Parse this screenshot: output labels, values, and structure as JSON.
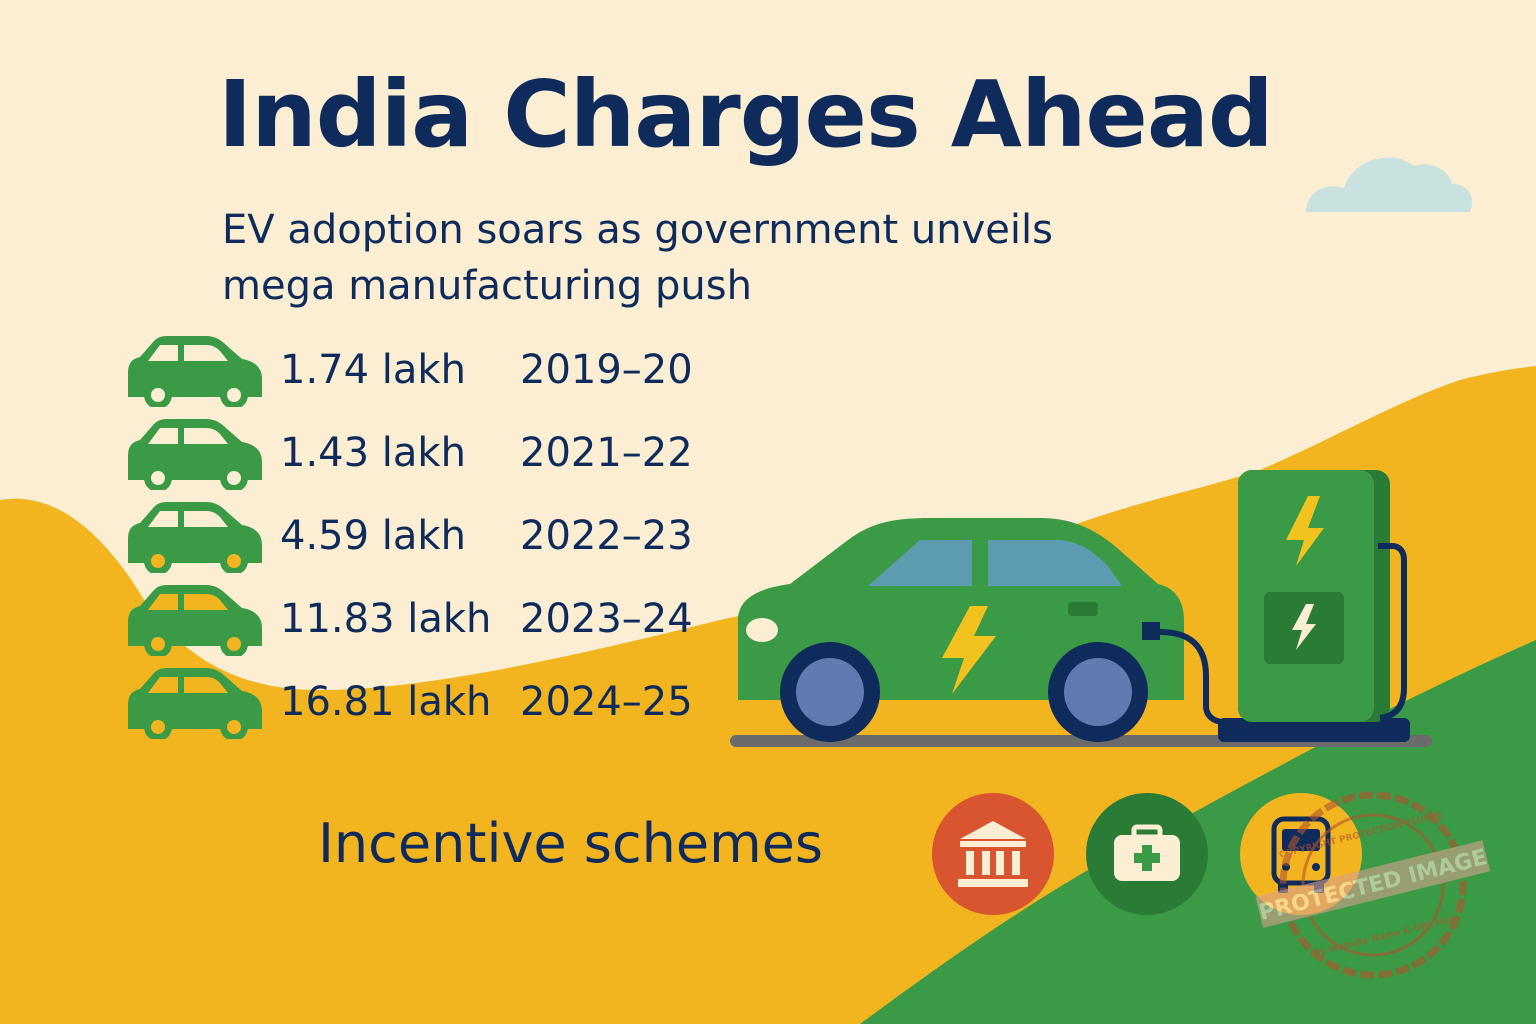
{
  "infographic": {
    "title": "India Charges Ahead",
    "subtitle": "EV adoption soars as government unveils mega manufacturing push",
    "stats": [
      {
        "value": "1.74 lakh",
        "year": "2019–20"
      },
      {
        "value": "1.43 lakh",
        "year": "2021–22"
      },
      {
        "value": "4.59 lakh",
        "year": "2022–23"
      },
      {
        "value": "11.83 lakh",
        "year": "2023–24"
      },
      {
        "value": "16.81 lakh",
        "year": "2024–25"
      }
    ],
    "incentives_heading": "Incentive schemes",
    "scheme_icons": [
      "bank-building-icon",
      "toolbox-plus-icon",
      "bus-icon"
    ],
    "watermark_text": [
      "PROTECTED IMAGE",
      "COPYRIGHT PROTECTION PLUGIN",
      "My Website Name & URL Here"
    ]
  },
  "colors": {
    "background": "#fbeed3",
    "navy": "#0f2b5c",
    "green": "#3a9a46",
    "mustard": "#f2b51f",
    "red": "#d9552f",
    "cloud": "#c9e2e0"
  }
}
